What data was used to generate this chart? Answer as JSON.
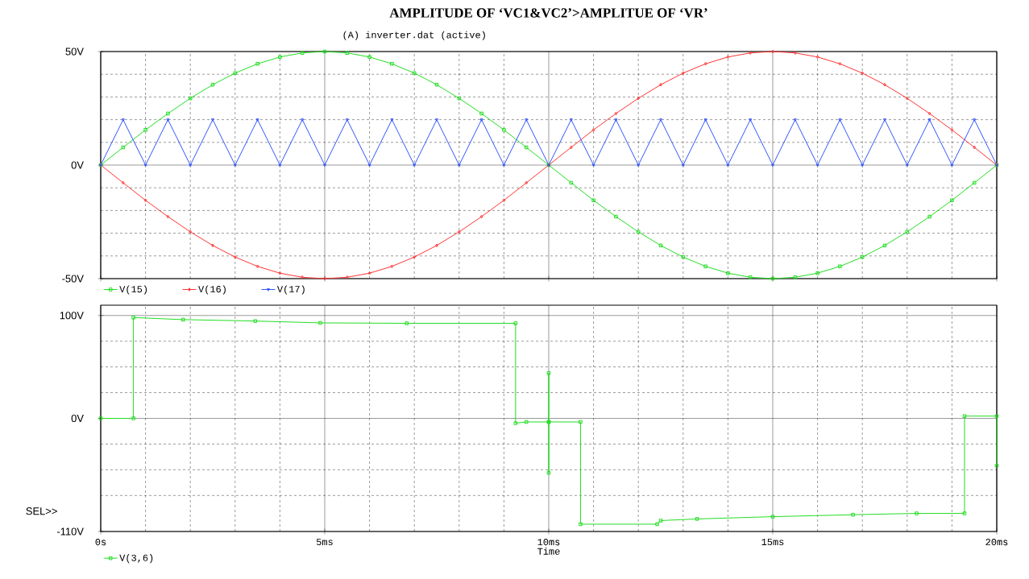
{
  "chart_data": [
    {
      "type": "line",
      "title": "AMPLITUDE OF ‘VC1&VC2’>AMPLITUE OF ‘VR’",
      "subtitle": "(A) inverter.dat (active)",
      "xlim": [
        0,
        20
      ],
      "xticks": [
        0,
        5,
        10,
        15,
        20
      ],
      "ylim": [
        -50,
        50
      ],
      "yticks": [
        {
          "value": 50,
          "label": "50V"
        },
        {
          "value": 40,
          "label": null
        },
        {
          "value": 30,
          "label": null
        },
        {
          "value": 20,
          "label": null
        },
        {
          "value": 10,
          "label": null
        },
        {
          "value": 0,
          "label": "0V"
        },
        {
          "value": -10,
          "label": null
        },
        {
          "value": -20,
          "label": null
        },
        {
          "value": -30,
          "label": null
        },
        {
          "value": -40,
          "label": null
        },
        {
          "value": -50,
          "label": "-50V"
        }
      ],
      "grid": true,
      "legend": "bottom",
      "tick_labels": "y",
      "x": [
        0,
        0.5,
        1,
        1.5,
        2,
        2.5,
        3,
        3.5,
        4,
        4.5,
        5,
        5.5,
        6,
        6.5,
        7,
        7.5,
        8,
        8.5,
        9,
        9.5,
        10,
        10.5,
        11,
        11.5,
        12,
        12.5,
        13,
        13.5,
        14,
        14.5,
        15,
        15.5,
        16,
        16.5,
        17,
        17.5,
        18,
        18.5,
        19,
        19.5,
        20
      ],
      "series": [
        {
          "name": "V(15)",
          "color": "#22dd22",
          "marker": "square",
          "values": [
            0,
            7.8,
            15.5,
            22.7,
            29.4,
            35.4,
            40.5,
            44.6,
            47.6,
            49.4,
            50,
            49.4,
            47.6,
            44.6,
            40.5,
            35.4,
            29.4,
            22.7,
            15.5,
            7.8,
            0,
            -7.8,
            -15.5,
            -22.7,
            -29.4,
            -35.4,
            -40.5,
            -44.6,
            -47.6,
            -49.4,
            -50,
            -49.4,
            -47.6,
            -44.6,
            -40.5,
            -35.4,
            -29.4,
            -22.7,
            -15.5,
            -7.8,
            0
          ]
        },
        {
          "name": "V(16)",
          "color": "#ff3333",
          "marker": "diamond",
          "values": [
            0,
            -7.8,
            -15.5,
            -22.7,
            -29.4,
            -35.4,
            -40.5,
            -44.6,
            -47.6,
            -49.4,
            -50,
            -49.4,
            -47.6,
            -44.6,
            -40.5,
            -35.4,
            -29.4,
            -22.7,
            -15.5,
            -7.8,
            0,
            7.8,
            15.5,
            22.7,
            29.4,
            35.4,
            40.5,
            44.6,
            47.6,
            49.4,
            50,
            49.4,
            47.6,
            44.6,
            40.5,
            35.4,
            29.4,
            22.7,
            15.5,
            7.8,
            0
          ]
        },
        {
          "name": "V(17)",
          "color": "#3355ff",
          "marker": "triangle",
          "values": [
            0,
            20,
            0,
            20,
            0,
            20,
            0,
            20,
            0,
            20,
            0,
            20,
            0,
            20,
            0,
            20,
            0,
            20,
            0,
            20,
            0,
            20,
            0,
            20,
            0,
            20,
            0,
            20,
            0,
            20,
            0,
            20,
            0,
            20,
            0,
            20,
            0,
            20,
            0,
            20,
            0
          ]
        }
      ]
    },
    {
      "type": "line",
      "xlabel": "Time",
      "annotations": [
        "SEL>>"
      ],
      "xlim": [
        0,
        20
      ],
      "xticks": [
        {
          "value": 0,
          "label": "0s"
        },
        {
          "value": 1,
          "label": null
        },
        {
          "value": 2,
          "label": null
        },
        {
          "value": 3,
          "label": null
        },
        {
          "value": 4,
          "label": null
        },
        {
          "value": 5,
          "label": "5ms"
        },
        {
          "value": 6,
          "label": null
        },
        {
          "value": 7,
          "label": null
        },
        {
          "value": 8,
          "label": null
        },
        {
          "value": 9,
          "label": null
        },
        {
          "value": 10,
          "label": "10ms"
        },
        {
          "value": 11,
          "label": null
        },
        {
          "value": 12,
          "label": null
        },
        {
          "value": 13,
          "label": null
        },
        {
          "value": 14,
          "label": null
        },
        {
          "value": 15,
          "label": "15ms"
        },
        {
          "value": 16,
          "label": null
        },
        {
          "value": 17,
          "label": null
        },
        {
          "value": 18,
          "label": null
        },
        {
          "value": 19,
          "label": null
        },
        {
          "value": 20,
          "label": "20ms"
        }
      ],
      "ylim": [
        -110,
        110
      ],
      "yticks": [
        {
          "value": 100,
          "label": "100V"
        },
        {
          "value": 75,
          "label": null
        },
        {
          "value": 50,
          "label": null
        },
        {
          "value": 25,
          "label": null
        },
        {
          "value": 0,
          "label": "0V"
        },
        {
          "value": -25,
          "label": null
        },
        {
          "value": -50,
          "label": null
        },
        {
          "value": -75,
          "label": null
        },
        {
          "value": -110,
          "label": "-110V"
        }
      ],
      "grid": true,
      "legend": "bottom",
      "series": [
        {
          "name": "V(3,6)",
          "color": "#22dd22",
          "marker": "square",
          "x": [
            0,
            0.73,
            0.73,
            1.84,
            3.45,
            4.9,
            6.83,
            9.26,
            9.26,
            9.5,
            10,
            10,
            10,
            10,
            10.71,
            10.71,
            12.42,
            12.5,
            13.31,
            15,
            16.79,
            18.21,
            19.28,
            19.28,
            20,
            20
          ],
          "values": [
            0,
            0,
            98,
            96,
            94.6,
            92.8,
            92.4,
            92.4,
            -4.7,
            -3.5,
            -3.5,
            44,
            -53,
            -3.5,
            -3.5,
            -102.9,
            -102.9,
            -99.4,
            -97.8,
            -95.6,
            -93.7,
            -92.4,
            -92.4,
            2.2,
            2.2,
            -46
          ]
        }
      ]
    }
  ]
}
